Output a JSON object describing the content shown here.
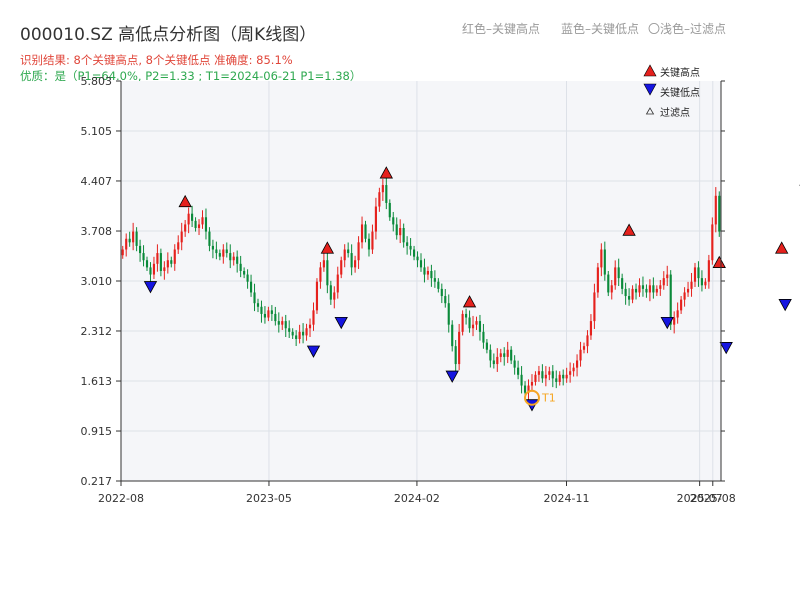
{
  "chart_data": {
    "type": "candlestick",
    "title": "000010.SZ 高低点分析图（周K线图）",
    "subtitle1": "识别结果: 8个关键高点, 8个关键低点  准确度: 85.1%",
    "subtitle2": "优质：是（P1=64.0%, P2=1.33 ; T1=2024-06-21 P1=1.38）",
    "top_legend": [
      "红色–关键高点",
      "蓝色–关键低点",
      "〇浅色–过滤点"
    ],
    "right_legend": [
      "关键高点",
      "关键低点",
      "过滤点"
    ],
    "annotation_label": "T1",
    "y_ticks": [
      "0.217",
      "0.915",
      "1.613",
      "2.312",
      "3.010",
      "3.708",
      "4.407",
      "5.105",
      "5.803"
    ],
    "ylim": [
      0.217,
      5.803
    ],
    "x_ticks": [
      {
        "label": "2022-08",
        "t": 0.0
      },
      {
        "label": "2023-05",
        "t": 0.2466
      },
      {
        "label": "2024-02",
        "t": 0.4932
      },
      {
        "label": "2024-11",
        "t": 0.7425
      },
      {
        "label": "2025-07",
        "t": 0.9644
      },
      {
        "label": "2025-08",
        "t": 0.9863
      }
    ],
    "grid": true,
    "colors": {
      "up": "#e5211d",
      "down": "#0a8a3a",
      "high_marker": "#e5211d",
      "low_marker": "#1515e0",
      "t1": "#f5a623",
      "subtitle1": "#e0463a",
      "subtitle2": "#2ea84f",
      "background": "#f5f6f9"
    },
    "close_series": [
      3.45,
      3.6,
      3.55,
      3.7,
      3.5,
      3.4,
      3.3,
      3.2,
      3.1,
      3.25,
      3.4,
      3.15,
      3.2,
      3.3,
      3.25,
      3.45,
      3.55,
      3.7,
      3.8,
      3.95,
      3.85,
      3.75,
      3.8,
      3.9,
      3.7,
      3.5,
      3.45,
      3.4,
      3.35,
      3.45,
      3.4,
      3.3,
      3.35,
      3.25,
      3.15,
      3.1,
      3.0,
      2.85,
      2.7,
      2.65,
      2.55,
      2.5,
      2.6,
      2.55,
      2.45,
      2.4,
      2.45,
      2.35,
      2.3,
      2.25,
      2.2,
      2.3,
      2.25,
      2.35,
      2.4,
      2.6,
      3.0,
      3.2,
      3.3,
      2.95,
      2.75,
      2.85,
      3.1,
      3.3,
      3.45,
      3.4,
      3.2,
      3.3,
      3.55,
      3.8,
      3.6,
      3.45,
      3.7,
      4.05,
      4.25,
      4.35,
      4.1,
      3.9,
      3.8,
      3.65,
      3.75,
      3.55,
      3.5,
      3.45,
      3.35,
      3.3,
      3.2,
      3.1,
      3.15,
      3.05,
      3.0,
      2.9,
      2.8,
      2.7,
      2.4,
      2.1,
      1.85,
      2.3,
      2.55,
      2.5,
      2.35,
      2.4,
      2.45,
      2.3,
      2.15,
      2.05,
      1.9,
      1.85,
      1.95,
      2.0,
      1.95,
      2.05,
      1.9,
      1.8,
      1.7,
      1.55,
      1.45,
      1.55,
      1.6,
      1.7,
      1.75,
      1.65,
      1.7,
      1.75,
      1.65,
      1.6,
      1.7,
      1.65,
      1.7,
      1.75,
      1.8,
      1.9,
      2.05,
      2.1,
      2.25,
      2.45,
      2.85,
      3.2,
      3.45,
      3.1,
      2.85,
      2.95,
      3.2,
      3.05,
      2.9,
      2.8,
      2.75,
      2.9,
      2.85,
      2.95,
      2.9,
      2.85,
      2.95,
      2.85,
      2.9,
      2.95,
      3.05,
      3.1,
      2.4,
      2.5,
      2.6,
      2.75,
      2.85,
      2.9,
      3.0,
      3.2,
      3.05,
      2.95,
      3.0,
      3.3,
      3.8,
      4.2,
      3.7
    ],
    "key_highs": [
      {
        "index": 18,
        "value": 3.95
      },
      {
        "index": 59,
        "value": 3.3
      },
      {
        "index": 76,
        "value": 4.35
      },
      {
        "index": 100,
        "value": 2.55
      },
      {
        "index": 146,
        "value": 3.55
      },
      {
        "index": 172,
        "value": 3.1
      },
      {
        "index": 190,
        "value": 3.3
      },
      {
        "index": 197,
        "value": 4.25
      }
    ],
    "key_lows": [
      {
        "index": 8,
        "value": 3.1
      },
      {
        "index": 55,
        "value": 2.2
      },
      {
        "index": 63,
        "value": 2.6
      },
      {
        "index": 95,
        "value": 1.85
      },
      {
        "index": 118,
        "value": 1.45
      },
      {
        "index": 157,
        "value": 2.6
      },
      {
        "index": 174,
        "value": 2.25
      },
      {
        "index": 191,
        "value": 2.85
      }
    ],
    "t1_index": 118,
    "t1_value": 1.38
  }
}
